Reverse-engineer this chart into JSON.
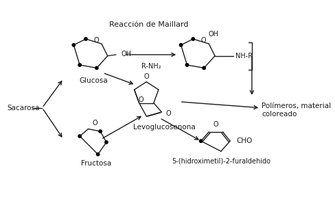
{
  "title": "Reacción de Maillard",
  "label_sacarosa": "Sacarosa",
  "label_glucosa": "Glucosa",
  "label_fructosa": "Fructosa",
  "label_levoglucosenona": "Levoglucosenona",
  "label_polimeros": "Polímeros, material\ncoloreado",
  "label_hmf": "5-(hidroximetil)-2-furaldehido",
  "label_rnh2": "R-NH₂",
  "label_nhr": "NH-R",
  "label_oh": "OH",
  "label_cho": "CHO",
  "label_o": "O",
  "bg_color": "#ffffff",
  "line_color": "#1a1a1a"
}
